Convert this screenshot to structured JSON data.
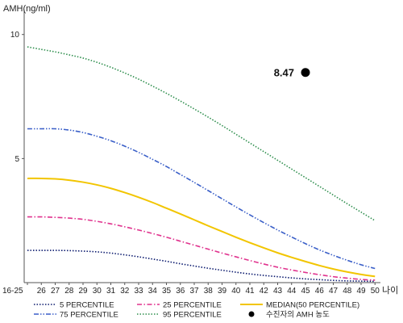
{
  "chart_data": {
    "type": "line",
    "ylabel": "AMH(ng/ml)",
    "xlabel": "나이",
    "categories": [
      "16-25",
      "26",
      "27",
      "28",
      "29",
      "30",
      "31",
      "32",
      "33",
      "34",
      "35",
      "36",
      "37",
      "38",
      "39",
      "40",
      "41",
      "42",
      "43",
      "44",
      "45",
      "46",
      "47",
      "48",
      "49",
      "50"
    ],
    "yticks": [
      5,
      10
    ],
    "ylim": [
      0,
      11
    ],
    "series": [
      {
        "name": "5 PERCENTILE",
        "color": "#0b1a6e",
        "style": "dotted",
        "values": [
          1.3,
          1.3,
          1.3,
          1.29,
          1.27,
          1.24,
          1.19,
          1.12,
          1.04,
          0.95,
          0.86,
          0.76,
          0.67,
          0.58,
          0.5,
          0.42,
          0.35,
          0.29,
          0.24,
          0.19,
          0.15,
          0.12,
          0.09,
          0.07,
          0.06,
          0.05
        ]
      },
      {
        "name": "25 PERCENTILE",
        "color": "#e0338e",
        "style": "dashdot",
        "values": [
          2.65,
          2.65,
          2.63,
          2.6,
          2.55,
          2.47,
          2.37,
          2.25,
          2.12,
          1.98,
          1.83,
          1.67,
          1.51,
          1.35,
          1.19,
          1.04,
          0.89,
          0.75,
          0.62,
          0.51,
          0.41,
          0.32,
          0.24,
          0.18,
          0.13,
          0.1
        ]
      },
      {
        "name": "MEDIAN(50 PERCENTILE)",
        "color": "#f2c500",
        "style": "solid",
        "values": [
          4.2,
          4.2,
          4.18,
          4.13,
          4.05,
          3.94,
          3.8,
          3.63,
          3.44,
          3.23,
          3.0,
          2.77,
          2.53,
          2.29,
          2.06,
          1.83,
          1.61,
          1.4,
          1.2,
          1.02,
          0.85,
          0.69,
          0.55,
          0.43,
          0.33,
          0.25
        ]
      },
      {
        "name": "75 PERCENTILE",
        "color": "#3a5fc8",
        "style": "dashdotdot",
        "values": [
          6.2,
          6.2,
          6.2,
          6.15,
          6.05,
          5.9,
          5.72,
          5.5,
          5.25,
          4.97,
          4.68,
          4.36,
          4.04,
          3.71,
          3.38,
          3.05,
          2.73,
          2.42,
          2.12,
          1.84,
          1.57,
          1.32,
          1.1,
          0.9,
          0.72,
          0.57
        ]
      },
      {
        "name": "95 PERCENTILE",
        "color": "#2f8f4e",
        "style": "dotted",
        "values": [
          9.5,
          9.4,
          9.3,
          9.18,
          9.05,
          8.88,
          8.68,
          8.45,
          8.2,
          7.92,
          7.63,
          7.32,
          7.0,
          6.67,
          6.33,
          5.98,
          5.63,
          5.28,
          4.93,
          4.58,
          4.23,
          3.88,
          3.53,
          3.18,
          2.84,
          2.5
        ]
      }
    ],
    "marker": {
      "name": "수진자의 AMH 농도",
      "x": "45",
      "y": 8.47,
      "label": "8.47",
      "color": "#000000"
    },
    "legend_position": "bottom",
    "grid": false
  }
}
